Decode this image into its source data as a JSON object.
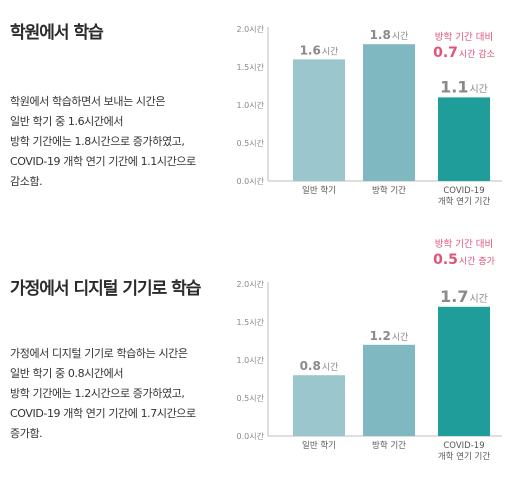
{
  "colors": {
    "bar_light": "#9cc6cd",
    "bar_mid": "#7fb8c1",
    "bar_dark": "#1e9d9a",
    "accent_pink": "#e0537a",
    "axis_text": "#8a8a8a",
    "value_text": "#8a8a8a",
    "title_text": "#2b2b2b"
  },
  "sections": [
    {
      "title": "학원에서 학습",
      "body_lines": [
        "학원에서 학습하면서 보내는 시간은",
        "일반 학기 중 1.6시간에서",
        "방학 기간에는 1.8시간으로 증가하였고,",
        "COVID-19 개학 연기 기간에 1.1시간으로",
        "감소함."
      ],
      "annotation": {
        "line1": "방학 기간 대비",
        "value": "0.7",
        "unit": "시간 감소"
      }
    },
    {
      "title": "가정에서 디지털 기기로 학습",
      "body_lines": [
        "가정에서 디지털 기기로 학습하는 시간은",
        "일반 학기 중 0.8시간에서",
        "방학 기간에는 1.2시간으로 증가하였고,",
        "COVID-19 개학 연기 기간에 1.7시간으로",
        "증가함."
      ],
      "annotation": {
        "line1": "방학 기간 대비",
        "value": "0.5",
        "unit": "시간 증가"
      }
    }
  ],
  "chart_data": [
    {
      "type": "bar",
      "categories": [
        [
          "일반 학기"
        ],
        [
          "방학 기간"
        ],
        [
          "COVID-19",
          "개학 연기 기간"
        ]
      ],
      "values": [
        1.6,
        1.8,
        1.1
      ],
      "value_labels": [
        {
          "num": "1.6",
          "unit": "시간"
        },
        {
          "num": "1.8",
          "unit": "시간"
        },
        {
          "num": "1.1",
          "unit": "시간"
        }
      ],
      "yticks": [
        "0.0시간",
        "0.5시간",
        "1.0시간",
        "1.5시간",
        "2.0시간"
      ],
      "ylim": [
        0,
        2.0
      ],
      "highlight_index": 2
    },
    {
      "type": "bar",
      "categories": [
        [
          "일반 학기"
        ],
        [
          "방학 기간"
        ],
        [
          "COVID-19",
          "개학 연기 기간"
        ]
      ],
      "values": [
        0.8,
        1.2,
        1.7
      ],
      "value_labels": [
        {
          "num": "0.8",
          "unit": "시간"
        },
        {
          "num": "1.2",
          "unit": "시간"
        },
        {
          "num": "1.7",
          "unit": "시간"
        }
      ],
      "yticks": [
        "0.0시간",
        "0.5시간",
        "1.0시간",
        "1.5시간",
        "2.0시간"
      ],
      "ylim": [
        0,
        2.0
      ],
      "highlight_index": 2
    }
  ]
}
